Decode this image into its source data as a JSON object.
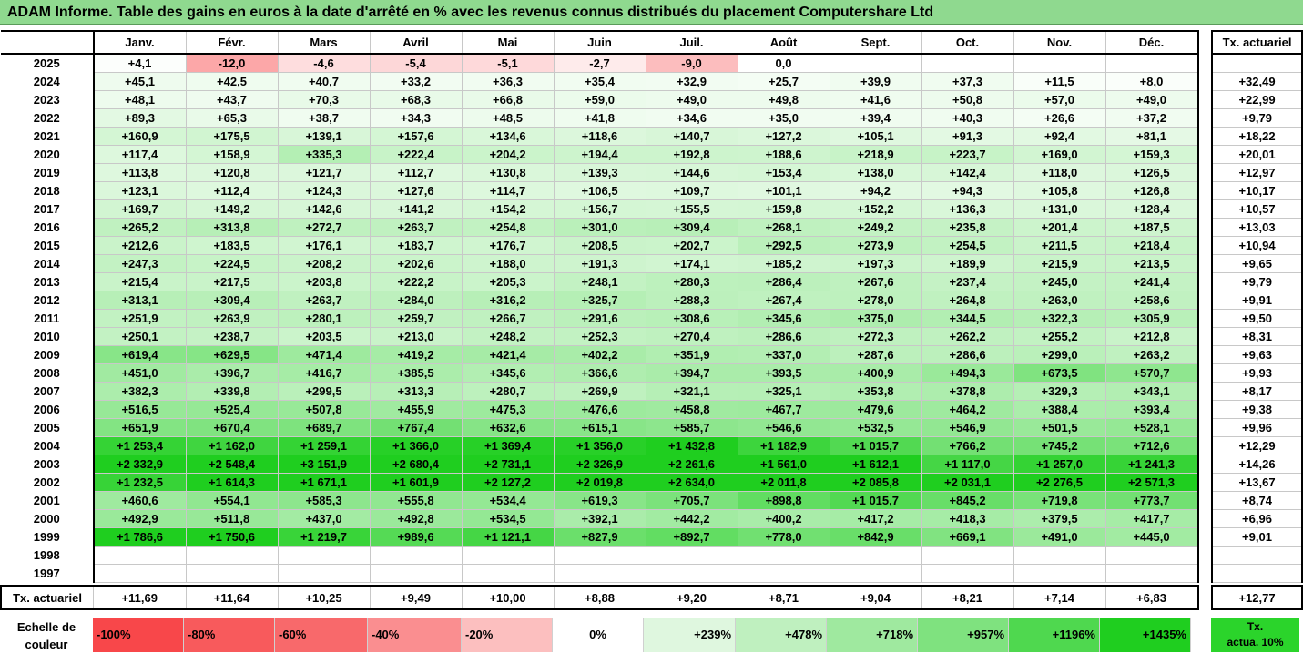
{
  "title": "ADAM Informe. Table des gains en euros à la date d'arrêté en % avec les revenus connus distribués du placement Computershare Ltd",
  "chart_data": {
    "type": "heatmap",
    "months": [
      "Janv.",
      "Févr.",
      "Mars",
      "Avril",
      "Mai",
      "Juin",
      "Juil.",
      "Août",
      "Sept.",
      "Oct.",
      "Nov.",
      "Déc."
    ],
    "side_header": "Tx. actuariel",
    "rows": [
      {
        "year": "2025",
        "values": [
          "+4,1",
          "-12,0",
          "-4,6",
          "-5,4",
          "-5,1",
          "-2,7",
          "-9,0",
          "0,0",
          "",
          "",
          "",
          ""
        ],
        "tx": ""
      },
      {
        "year": "2024",
        "values": [
          "+45,1",
          "+42,5",
          "+40,7",
          "+33,2",
          "+36,3",
          "+35,4",
          "+32,9",
          "+25,7",
          "+39,9",
          "+37,3",
          "+11,5",
          "+8,0"
        ],
        "tx": "+32,49"
      },
      {
        "year": "2023",
        "values": [
          "+48,1",
          "+43,7",
          "+70,3",
          "+68,3",
          "+66,8",
          "+59,0",
          "+49,0",
          "+49,8",
          "+41,6",
          "+50,8",
          "+57,0",
          "+49,0"
        ],
        "tx": "+22,99"
      },
      {
        "year": "2022",
        "values": [
          "+89,3",
          "+65,3",
          "+38,7",
          "+34,3",
          "+48,5",
          "+41,8",
          "+34,6",
          "+35,0",
          "+39,4",
          "+40,3",
          "+26,6",
          "+37,2"
        ],
        "tx": "+9,79"
      },
      {
        "year": "2021",
        "values": [
          "+160,9",
          "+175,5",
          "+139,1",
          "+157,6",
          "+134,6",
          "+118,6",
          "+140,7",
          "+127,2",
          "+105,1",
          "+91,3",
          "+92,4",
          "+81,1"
        ],
        "tx": "+18,22"
      },
      {
        "year": "2020",
        "values": [
          "+117,4",
          "+158,9",
          "+335,3",
          "+222,4",
          "+204,2",
          "+194,4",
          "+192,8",
          "+188,6",
          "+218,9",
          "+223,7",
          "+169,0",
          "+159,3"
        ],
        "tx": "+20,01"
      },
      {
        "year": "2019",
        "values": [
          "+113,8",
          "+120,8",
          "+121,7",
          "+112,7",
          "+130,8",
          "+139,3",
          "+144,6",
          "+153,4",
          "+138,0",
          "+142,4",
          "+118,0",
          "+126,5"
        ],
        "tx": "+12,97"
      },
      {
        "year": "2018",
        "values": [
          "+123,1",
          "+112,4",
          "+124,3",
          "+127,6",
          "+114,7",
          "+106,5",
          "+109,7",
          "+101,1",
          "+94,2",
          "+94,3",
          "+105,8",
          "+126,8"
        ],
        "tx": "+10,17"
      },
      {
        "year": "2017",
        "values": [
          "+169,7",
          "+149,2",
          "+142,6",
          "+141,2",
          "+154,2",
          "+156,7",
          "+155,5",
          "+159,8",
          "+152,2",
          "+136,3",
          "+131,0",
          "+128,4"
        ],
        "tx": "+10,57"
      },
      {
        "year": "2016",
        "values": [
          "+265,2",
          "+313,8",
          "+272,7",
          "+263,7",
          "+254,8",
          "+301,0",
          "+309,4",
          "+268,1",
          "+249,2",
          "+235,8",
          "+201,4",
          "+187,5"
        ],
        "tx": "+13,03"
      },
      {
        "year": "2015",
        "values": [
          "+212,6",
          "+183,5",
          "+176,1",
          "+183,7",
          "+176,7",
          "+208,5",
          "+202,7",
          "+292,5",
          "+273,9",
          "+254,5",
          "+211,5",
          "+218,4"
        ],
        "tx": "+10,94"
      },
      {
        "year": "2014",
        "values": [
          "+247,3",
          "+224,5",
          "+208,2",
          "+202,6",
          "+188,0",
          "+191,3",
          "+174,1",
          "+185,2",
          "+197,3",
          "+189,9",
          "+215,9",
          "+213,5"
        ],
        "tx": "+9,65"
      },
      {
        "year": "2013",
        "values": [
          "+215,4",
          "+217,5",
          "+203,8",
          "+222,2",
          "+205,3",
          "+248,1",
          "+280,3",
          "+286,4",
          "+267,6",
          "+237,4",
          "+245,0",
          "+241,4"
        ],
        "tx": "+9,79"
      },
      {
        "year": "2012",
        "values": [
          "+313,1",
          "+309,4",
          "+263,7",
          "+284,0",
          "+316,2",
          "+325,7",
          "+288,3",
          "+267,4",
          "+278,0",
          "+264,8",
          "+263,0",
          "+258,6"
        ],
        "tx": "+9,91"
      },
      {
        "year": "2011",
        "values": [
          "+251,9",
          "+263,9",
          "+280,1",
          "+259,7",
          "+266,7",
          "+291,6",
          "+308,6",
          "+345,6",
          "+375,0",
          "+344,5",
          "+322,3",
          "+305,9"
        ],
        "tx": "+9,50"
      },
      {
        "year": "2010",
        "values": [
          "+250,1",
          "+238,7",
          "+203,5",
          "+213,0",
          "+248,2",
          "+252,3",
          "+270,4",
          "+286,6",
          "+272,3",
          "+262,2",
          "+255,2",
          "+212,8"
        ],
        "tx": "+8,31"
      },
      {
        "year": "2009",
        "values": [
          "+619,4",
          "+629,5",
          "+471,4",
          "+419,2",
          "+421,4",
          "+402,2",
          "+351,9",
          "+337,0",
          "+287,6",
          "+286,6",
          "+299,0",
          "+263,2"
        ],
        "tx": "+9,63"
      },
      {
        "year": "2008",
        "values": [
          "+451,0",
          "+396,7",
          "+416,7",
          "+385,5",
          "+345,6",
          "+366,6",
          "+394,7",
          "+393,5",
          "+400,9",
          "+494,3",
          "+673,5",
          "+570,7"
        ],
        "tx": "+9,93"
      },
      {
        "year": "2007",
        "values": [
          "+382,3",
          "+339,8",
          "+299,5",
          "+313,3",
          "+280,7",
          "+269,9",
          "+321,1",
          "+325,1",
          "+353,8",
          "+378,8",
          "+329,3",
          "+343,1"
        ],
        "tx": "+8,17"
      },
      {
        "year": "2006",
        "values": [
          "+516,5",
          "+525,4",
          "+507,8",
          "+455,9",
          "+475,3",
          "+476,6",
          "+458,8",
          "+467,7",
          "+479,6",
          "+464,2",
          "+388,4",
          "+393,4"
        ],
        "tx": "+9,38"
      },
      {
        "year": "2005",
        "values": [
          "+651,9",
          "+670,4",
          "+689,7",
          "+767,4",
          "+632,6",
          "+615,1",
          "+585,7",
          "+546,6",
          "+532,5",
          "+546,9",
          "+501,5",
          "+528,1"
        ],
        "tx": "+9,96"
      },
      {
        "year": "2004",
        "values": [
          "+1 253,4",
          "+1 162,0",
          "+1 259,1",
          "+1 366,0",
          "+1 369,4",
          "+1 356,0",
          "+1 432,8",
          "+1 182,9",
          "+1 015,7",
          "+766,2",
          "+745,2",
          "+712,6"
        ],
        "tx": "+12,29"
      },
      {
        "year": "2003",
        "values": [
          "+2 332,9",
          "+2 548,4",
          "+3 151,9",
          "+2 680,4",
          "+2 731,1",
          "+2 326,9",
          "+2 261,6",
          "+1 561,0",
          "+1 612,1",
          "+1 117,0",
          "+1 257,0",
          "+1 241,3"
        ],
        "tx": "+14,26"
      },
      {
        "year": "2002",
        "values": [
          "+1 232,5",
          "+1 614,3",
          "+1 671,1",
          "+1 601,9",
          "+2 127,2",
          "+2 019,8",
          "+2 634,0",
          "+2 011,8",
          "+2 085,8",
          "+2 031,1",
          "+2 276,5",
          "+2 571,3"
        ],
        "tx": "+13,67"
      },
      {
        "year": "2001",
        "values": [
          "+460,6",
          "+554,1",
          "+585,3",
          "+555,8",
          "+534,4",
          "+619,3",
          "+705,7",
          "+898,8",
          "+1 015,7",
          "+845,2",
          "+719,8",
          "+773,7"
        ],
        "tx": "+8,74"
      },
      {
        "year": "2000",
        "values": [
          "+492,9",
          "+511,8",
          "+437,0",
          "+492,8",
          "+534,5",
          "+392,1",
          "+442,2",
          "+400,2",
          "+417,2",
          "+418,3",
          "+379,5",
          "+417,7"
        ],
        "tx": "+6,96"
      },
      {
        "year": "1999",
        "values": [
          "+1 786,6",
          "+1 750,6",
          "+1 219,7",
          "+989,6",
          "+1 121,1",
          "+827,9",
          "+892,7",
          "+778,0",
          "+842,9",
          "+669,1",
          "+491,0",
          "+445,0"
        ],
        "tx": "+9,01"
      },
      {
        "year": "1998",
        "values": [
          "",
          "",
          "",
          "",
          "",
          "",
          "",
          "",
          "",
          "",
          "",
          ""
        ],
        "tx": ""
      },
      {
        "year": "1997",
        "values": [
          "",
          "",
          "",
          "",
          "",
          "",
          "",
          "",
          "",
          "",
          "",
          ""
        ],
        "tx": ""
      }
    ],
    "footer_label": "Tx. actuariel",
    "footer_values": [
      "+11,69",
      "+11,64",
      "+10,25",
      "+9,49",
      "+10,00",
      "+8,88",
      "+9,20",
      "+8,71",
      "+9,04",
      "+8,21",
      "+7,14",
      "+6,83"
    ],
    "footer_tx": "+12,77",
    "scale": {
      "label_line1": "Echelle de",
      "label_line2": "couleur",
      "stops": [
        {
          "text": "-100%",
          "color": "#f8474a",
          "align": "left"
        },
        {
          "text": "-80%",
          "color": "#f85a5c",
          "align": "left"
        },
        {
          "text": "-60%",
          "color": "#f8696b",
          "align": "left"
        },
        {
          "text": "-40%",
          "color": "#fa8e90",
          "align": "left"
        },
        {
          "text": "-20%",
          "color": "#fcbfbf",
          "align": "left"
        },
        {
          "text": "0%",
          "color": "#ffffff",
          "align": "center"
        },
        {
          "text": "+239%",
          "color": "#dff7df",
          "align": "right"
        },
        {
          "text": "+478%",
          "color": "#bff0bf",
          "align": "right"
        },
        {
          "text": "+718%",
          "color": "#9fe99f",
          "align": "right"
        },
        {
          "text": "+957%",
          "color": "#7fe27f",
          "align": "right"
        },
        {
          "text": "+1196%",
          "color": "#4fd84f",
          "align": "right"
        },
        {
          "text": "+1435%",
          "color": "#1fce1f",
          "align": "right"
        }
      ],
      "tx_line1": "Tx.",
      "tx_line2": "actua. 10%",
      "tx_color": "#2bd42b"
    }
  }
}
